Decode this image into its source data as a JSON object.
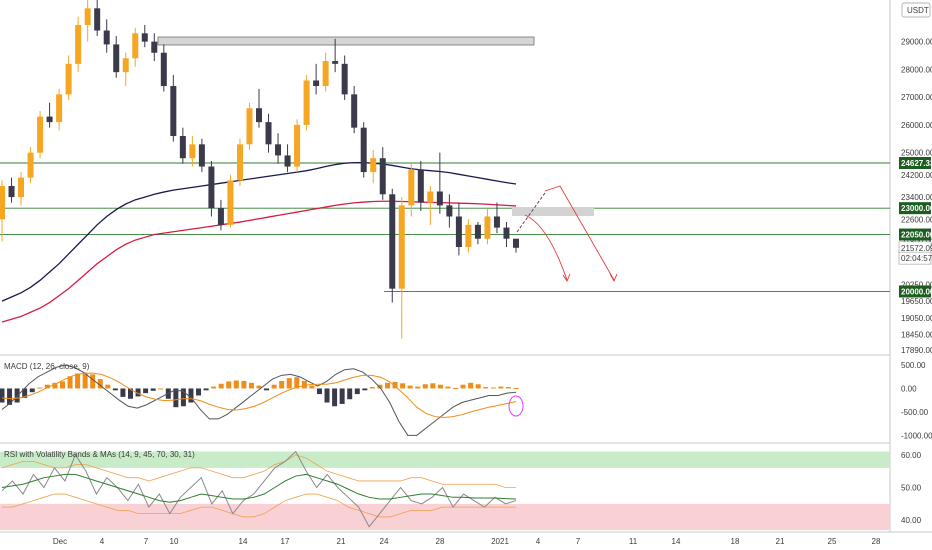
{
  "chart_data": {
    "type": "candlestick",
    "currency": "USDT",
    "price_axis": {
      "ylim": [
        17890,
        30500
      ],
      "ticks": [
        29000,
        28000,
        27000,
        26000,
        25000,
        24200,
        23400,
        22600,
        21800,
        20250,
        19650,
        19050,
        18450,
        17890
      ],
      "tick_labels": [
        "29000.00",
        "28000.00",
        "27000.00",
        "26000.00",
        "25000.00",
        "24200.00",
        "23400.00",
        "22600.00",
        "21800.00",
        "20250.00",
        "19650.00",
        "19050.00",
        "18450.00",
        "17890.00"
      ]
    },
    "x_axis": {
      "ticks": [
        "Dec",
        "4",
        "7",
        "10",
        "14",
        "17",
        "21",
        "24",
        "28",
        "2021",
        "4",
        "7",
        "11",
        "14",
        "18",
        "21",
        "25",
        "28"
      ]
    },
    "price_tags": [
      {
        "label": "24627.33",
        "value": 24627.33,
        "color": "#1b5e20"
      },
      {
        "label": "23000.00",
        "value": 23000,
        "color": "#1b5e20"
      },
      {
        "label": "22050.00",
        "value": 22050,
        "color": "#1b5e20"
      },
      {
        "label": "21572.09",
        "value": 21572.09,
        "color": "#ffffff"
      },
      {
        "label": "02:04:57",
        "value": 21200,
        "color": "#ffffff"
      },
      {
        "label": "20000.00",
        "value": 20000,
        "color": "#1b5e20"
      }
    ],
    "horizontal_levels": [
      24627.33,
      23000,
      22050,
      20000
    ],
    "resistance_box": {
      "price_low": 28850,
      "price_high": 29100
    },
    "target_box": {
      "price_low": 22200,
      "price_high": 22450
    },
    "candles": [
      [
        22600,
        24000,
        21800,
        23800
      ],
      [
        23800,
        24100,
        23200,
        23400
      ],
      [
        23400,
        24300,
        23100,
        24100
      ],
      [
        24100,
        25200,
        23900,
        25000
      ],
      [
        25000,
        26500,
        24800,
        26300
      ],
      [
        26300,
        26800,
        25900,
        26100
      ],
      [
        26100,
        27300,
        25800,
        27100
      ],
      [
        27100,
        28500,
        26900,
        28200
      ],
      [
        28200,
        29900,
        27900,
        29600
      ],
      [
        29600,
        30800,
        29000,
        30200
      ],
      [
        30200,
        30600,
        29200,
        29400
      ],
      [
        29400,
        29800,
        28600,
        28900
      ],
      [
        28900,
        29200,
        27700,
        27900
      ],
      [
        27900,
        28600,
        27400,
        28400
      ],
      [
        28400,
        29500,
        28100,
        29300
      ],
      [
        29300,
        29600,
        28800,
        29000
      ],
      [
        29000,
        29300,
        28300,
        28600
      ],
      [
        28600,
        28900,
        27200,
        27400
      ],
      [
        27400,
        27800,
        25400,
        25600
      ],
      [
        25600,
        25900,
        24600,
        24800
      ],
      [
        24800,
        25600,
        24500,
        25300
      ],
      [
        25300,
        25500,
        24300,
        24500
      ],
      [
        24500,
        24700,
        22700,
        23000
      ],
      [
        23000,
        23300,
        22200,
        22400
      ],
      [
        22400,
        24200,
        22300,
        24000
      ],
      [
        24000,
        25500,
        23800,
        25300
      ],
      [
        25300,
        26800,
        25100,
        26600
      ],
      [
        26600,
        27300,
        25900,
        26100
      ],
      [
        26100,
        26400,
        25000,
        25300
      ],
      [
        25300,
        25700,
        24600,
        24900
      ],
      [
        24900,
        25300,
        24300,
        24500
      ],
      [
        24500,
        26200,
        24300,
        26000
      ],
      [
        26000,
        27800,
        25800,
        27600
      ],
      [
        27600,
        28200,
        27100,
        27400
      ],
      [
        27400,
        28600,
        27200,
        28300
      ],
      [
        28300,
        29100,
        27900,
        28200
      ],
      [
        28200,
        28500,
        26900,
        27100
      ],
      [
        27100,
        27400,
        25700,
        25900
      ],
      [
        25900,
        26100,
        24100,
        24300
      ],
      [
        24300,
        25100,
        23900,
        24800
      ],
      [
        24800,
        25200,
        23300,
        23500
      ],
      [
        23500,
        23700,
        19600,
        20100
      ],
      [
        20100,
        23400,
        18300,
        23100
      ],
      [
        23100,
        24600,
        22700,
        24400
      ],
      [
        24400,
        24700,
        22900,
        23200
      ],
      [
        23200,
        23800,
        22400,
        23600
      ],
      [
        23600,
        25000,
        22800,
        23100
      ],
      [
        23100,
        23500,
        22300,
        22700
      ],
      [
        22700,
        23200,
        21300,
        21600
      ],
      [
        21600,
        22600,
        21400,
        22400
      ],
      [
        22400,
        22500,
        21700,
        21900
      ],
      [
        21900,
        23000,
        21700,
        22700
      ],
      [
        22700,
        23200,
        22100,
        22300
      ],
      [
        22300,
        22500,
        21600,
        21900
      ],
      [
        21900,
        21900,
        21400,
        21572
      ]
    ],
    "moving_averages": [
      {
        "color": "#1a1a4e",
        "values": [
          19650,
          19800,
          19950,
          20150,
          20400,
          20700,
          21000,
          21350,
          21700,
          22050,
          22400,
          22700,
          22950,
          23150,
          23300,
          23400,
          23500,
          23580,
          23650,
          23700,
          23750,
          23800,
          23850,
          23900,
          23950,
          24000,
          24050,
          24100,
          24150,
          24200,
          24250,
          24300,
          24350,
          24420,
          24500,
          24570,
          24620,
          24640,
          24640,
          24620,
          24590,
          24540,
          24480,
          24420,
          24380,
          24350,
          24320,
          24280,
          24220,
          24160,
          24100,
          24040,
          23980,
          23920,
          23870
        ]
      },
      {
        "color": "#d81b44",
        "values": [
          18900,
          19000,
          19100,
          19250,
          19400,
          19600,
          19850,
          20100,
          20400,
          20700,
          21000,
          21250,
          21500,
          21700,
          21850,
          21950,
          22050,
          22100,
          22150,
          22200,
          22250,
          22300,
          22350,
          22400,
          22450,
          22500,
          22560,
          22620,
          22680,
          22740,
          22800,
          22860,
          22920,
          22980,
          23040,
          23100,
          23150,
          23190,
          23220,
          23240,
          23250,
          23250,
          23240,
          23230,
          23220,
          23210,
          23200,
          23190,
          23180,
          23170,
          23160,
          23140,
          23120,
          23100,
          23080
        ]
      }
    ],
    "macd": {
      "label": "MACD (12, 26, close, 9)",
      "ticks": [
        "500.00",
        "0.00",
        "-500.00",
        "-1000.00"
      ],
      "ylim": [
        -1100,
        650
      ],
      "histogram": [
        -300,
        -350,
        -300,
        -200,
        -80,
        20,
        80,
        120,
        150,
        260,
        320,
        340,
        300,
        200,
        80,
        -40,
        -180,
        -220,
        -170,
        -100,
        -50,
        0,
        -220,
        -400,
        -380,
        -300,
        -150,
        -40,
        40,
        100,
        150,
        170,
        160,
        120,
        60,
        -40,
        80,
        160,
        220,
        240,
        160,
        60,
        -120,
        -300,
        -380,
        -330,
        -230,
        -120,
        -40,
        30,
        80,
        120,
        140,
        110,
        60,
        40,
        90,
        110,
        80,
        40,
        10,
        80,
        120,
        90,
        30,
        20,
        40,
        30,
        10
      ],
      "macd_line": [
        -450,
        -300,
        -100,
        100,
        250,
        350,
        450,
        500,
        450,
        350,
        200,
        50,
        -100,
        -250,
        -380,
        -420,
        -350,
        -250,
        -150,
        -50,
        -50,
        -200,
        -450,
        -650,
        -650,
        -550,
        -400,
        -250,
        -100,
        50,
        200,
        280,
        300,
        250,
        150,
        50,
        150,
        300,
        400,
        420,
        350,
        200,
        0,
        -300,
        -700,
        -1000,
        -1000,
        -850,
        -700,
        -550,
        -400,
        -300,
        -250,
        -200,
        -150,
        -150,
        -100,
        -80
      ],
      "signal_line": [
        -200,
        -220,
        -200,
        -150,
        -80,
        20,
        100,
        200,
        280,
        320,
        330,
        300,
        230,
        130,
        10,
        -100,
        -180,
        -230,
        -260,
        -250,
        -220,
        -220,
        -260,
        -340,
        -400,
        -450,
        -460,
        -430,
        -380,
        -300,
        -200,
        -100,
        -20,
        40,
        80,
        90,
        90,
        120,
        180,
        240,
        280,
        280,
        240,
        140,
        -20,
        -200,
        -400,
        -530,
        -600,
        -620,
        -600,
        -560,
        -500,
        -450,
        -400,
        -360,
        -320,
        -280
      ]
    },
    "rsi": {
      "label": "RSI with Volatility Bands & MAs (14, 9, 45, 70, 30, 31)",
      "ticks": [
        "60.00",
        "50.00",
        "40.00"
      ],
      "ylim": [
        37,
        63
      ],
      "bands": [
        {
          "from": 56,
          "to": 61,
          "color": "#c8ebc8"
        },
        {
          "from": 37,
          "to": 45,
          "color": "#f9d0d3"
        }
      ],
      "rsi_line": [
        49,
        52,
        48,
        54,
        50,
        56,
        52,
        60,
        55,
        48,
        53,
        50,
        46,
        51,
        44,
        48,
        42,
        47,
        50,
        53,
        45,
        49,
        42,
        46,
        48,
        52,
        56,
        58,
        61,
        55,
        50,
        54,
        50,
        47,
        44,
        38,
        42,
        46,
        50,
        46,
        45,
        47,
        50,
        44,
        48,
        46,
        44,
        47,
        45,
        46
      ],
      "ma_line": [
        50,
        50.5,
        51,
        52,
        53,
        53.5,
        54,
        54,
        53,
        52,
        51,
        50,
        49,
        48,
        47,
        46,
        45.5,
        46,
        47,
        48,
        47.5,
        47,
        46.5,
        46.5,
        47,
        48,
        50,
        52,
        53.5,
        54,
        53,
        52,
        51,
        49.5,
        48,
        47,
        46.5,
        46.5,
        47,
        47.5,
        48,
        48,
        47.5,
        47,
        47,
        46.8,
        46.8,
        46.8,
        46.6,
        46.5
      ],
      "upper_band": [
        56,
        57,
        58,
        58,
        57,
        56,
        56,
        57,
        57,
        56,
        55,
        54,
        53,
        53,
        52,
        53,
        54,
        55,
        56,
        56,
        55,
        54,
        53,
        53,
        54,
        55,
        57,
        58,
        60,
        59,
        57,
        55,
        54,
        53,
        52,
        52,
        52,
        52,
        52,
        53,
        53,
        52,
        51,
        51,
        51,
        51,
        51,
        51,
        50,
        50
      ],
      "lower_band": [
        44,
        44,
        45,
        46,
        47,
        48,
        48,
        47,
        46,
        45,
        44,
        43,
        43,
        42,
        42,
        42,
        42,
        42,
        43,
        44,
        44,
        43,
        42,
        41,
        41,
        42,
        44,
        46,
        47,
        48,
        48,
        47,
        46,
        44,
        43,
        42,
        41,
        41,
        42,
        43,
        43,
        43,
        44,
        44,
        44,
        44,
        44,
        44,
        44,
        44
      ]
    }
  }
}
